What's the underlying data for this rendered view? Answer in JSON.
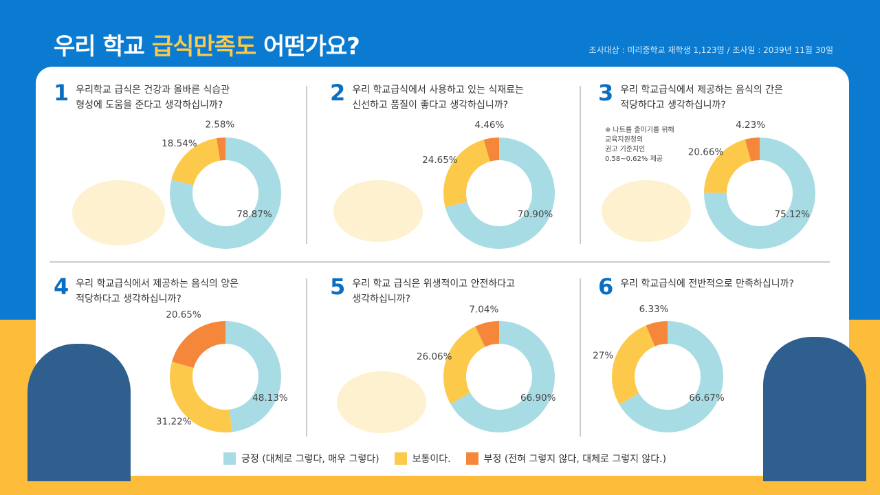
{
  "header": {
    "title_part1": "우리 학교 ",
    "title_highlight": "급식만족도",
    "title_part2": " 어떤가요?",
    "survey_info": "조사대상 : 미리중학교 재학생 1,123명 / 조사일 : 2039년 11월 30일"
  },
  "questions": [
    {
      "num": "1",
      "text": "우리학교 급식은 건강과 올바른 식습관\n형성에 도움을 준다고 생각하십니까?"
    },
    {
      "num": "2",
      "text": "우리 학교급식에서 사용하고 있는 식재료는\n신선하고 품질이 좋다고 생각하십니까?"
    },
    {
      "num": "3",
      "text": "우리 학교급식에서 제공하는 음식의 간은\n적당하다고 생각하십니까?"
    },
    {
      "num": "4",
      "text": "우리 학교급식에서 제공하는 음식의 양은\n적당하다고 생각하십니까?"
    },
    {
      "num": "5",
      "text": "우리 학교 급식은 위생적이고 안전하다고\n생각하십니까?"
    },
    {
      "num": "6",
      "text": "우리 학교급식에 전반적으로 만족하십니까?"
    }
  ],
  "note": "※ 나트륨 줄이기를 위해\n    교육지원청의\n    권고 기준치인\n    0.58~0.62% 제공",
  "legend": [
    {
      "label": "긍정 (대체로 그렇다, 매우 그렇다)",
      "color": "#a8dce5"
    },
    {
      "label": "보통이다.",
      "color": "#fdc94a"
    },
    {
      "label": "부정 (전혀 그렇지 않다, 대체로 그렇지 않다.)",
      "color": "#f5873a"
    }
  ],
  "chart_data": [
    {
      "type": "pie",
      "donut": true,
      "categories": [
        "긍정",
        "보통이다.",
        "부정"
      ],
      "values": [
        78.87,
        18.54,
        2.58
      ],
      "labels": [
        "78.87%",
        "18.54%",
        "2.58%"
      ]
    },
    {
      "type": "pie",
      "donut": true,
      "categories": [
        "긍정",
        "보통이다.",
        "부정"
      ],
      "values": [
        70.9,
        24.65,
        4.46
      ],
      "labels": [
        "70.90%",
        "24.65%",
        "4.46%"
      ]
    },
    {
      "type": "pie",
      "donut": true,
      "categories": [
        "긍정",
        "보통이다.",
        "부정"
      ],
      "values": [
        75.12,
        20.66,
        4.23
      ],
      "labels": [
        "75.12%",
        "20.66%",
        "4.23%"
      ]
    },
    {
      "type": "pie",
      "donut": true,
      "categories": [
        "긍정",
        "보통이다.",
        "부정"
      ],
      "values": [
        48.13,
        31.22,
        20.65
      ],
      "labels": [
        "48.13%",
        "31.22%",
        "20.65%"
      ]
    },
    {
      "type": "pie",
      "donut": true,
      "categories": [
        "긍정",
        "보통이다.",
        "부정"
      ],
      "values": [
        66.9,
        26.06,
        7.04
      ],
      "labels": [
        "66.90%",
        "26.06%",
        "7.04%"
      ]
    },
    {
      "type": "pie",
      "donut": true,
      "categories": [
        "긍정",
        "보통이다.",
        "부정"
      ],
      "values": [
        66.67,
        27,
        6.33
      ],
      "labels": [
        "66.67%",
        "27%",
        "6.33%"
      ]
    }
  ]
}
